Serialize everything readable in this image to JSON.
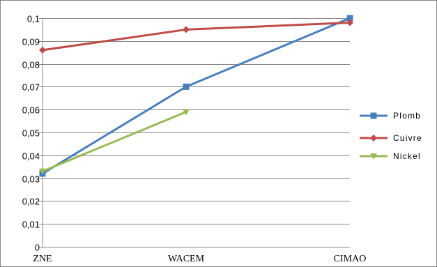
{
  "chart_data": {
    "type": "line",
    "categories": [
      "ZNE",
      "WACEM",
      "CIMAO"
    ],
    "ylim": [
      0,
      0.1
    ],
    "yticks": [
      "0",
      "0,01",
      "0,02",
      "0,03",
      "0,04",
      "0,05",
      "0,06",
      "0,07",
      "0,08",
      "0,09",
      "0,1"
    ],
    "grid": true,
    "legend_position": "right",
    "series": [
      {
        "name": "Plomb",
        "values": [
          0.032,
          0.07,
          0.1
        ],
        "color": "#4a7ebb",
        "marker": "square"
      },
      {
        "name": "Cuivre",
        "values": [
          0.086,
          0.095,
          0.098
        ],
        "color": "#be4b48",
        "marker": "diamond"
      },
      {
        "name": "Nickel",
        "values": [
          0.033,
          0.059,
          null
        ],
        "color": "#98b954",
        "marker": "triangle"
      }
    ]
  }
}
